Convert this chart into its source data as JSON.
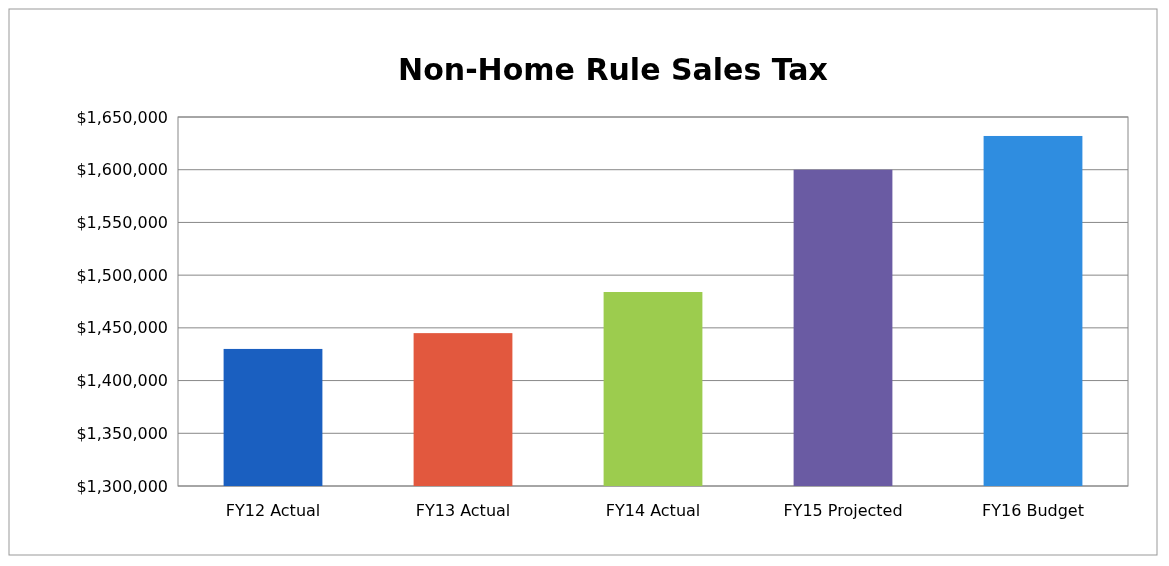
{
  "chart_data": {
    "type": "bar",
    "title": "Non-Home Rule Sales Tax",
    "categories": [
      "FY12 Actual",
      "FY13 Actual",
      "FY14 Actual",
      "FY15 Projected",
      "FY16 Budget"
    ],
    "values": [
      1430000,
      1445000,
      1484000,
      1600000,
      1632000
    ],
    "colors": [
      "#1a5fc0",
      "#e2583e",
      "#9ccc4e",
      "#6a5ba3",
      "#2f8de0"
    ],
    "ylim": [
      1300000,
      1650000
    ],
    "yticks": [
      {
        "value": 1300000,
        "label": "$1,300,000"
      },
      {
        "value": 1350000,
        "label": "$1,350,000"
      },
      {
        "value": 1400000,
        "label": "$1,400,000"
      },
      {
        "value": 1450000,
        "label": "$1,450,000"
      },
      {
        "value": 1500000,
        "label": "$1,500,000"
      },
      {
        "value": 1550000,
        "label": "$1,550,000"
      },
      {
        "value": 1600000,
        "label": "$1,600,000"
      },
      {
        "value": 1650000,
        "label": "$1,650,000"
      }
    ],
    "grid": "y"
  }
}
